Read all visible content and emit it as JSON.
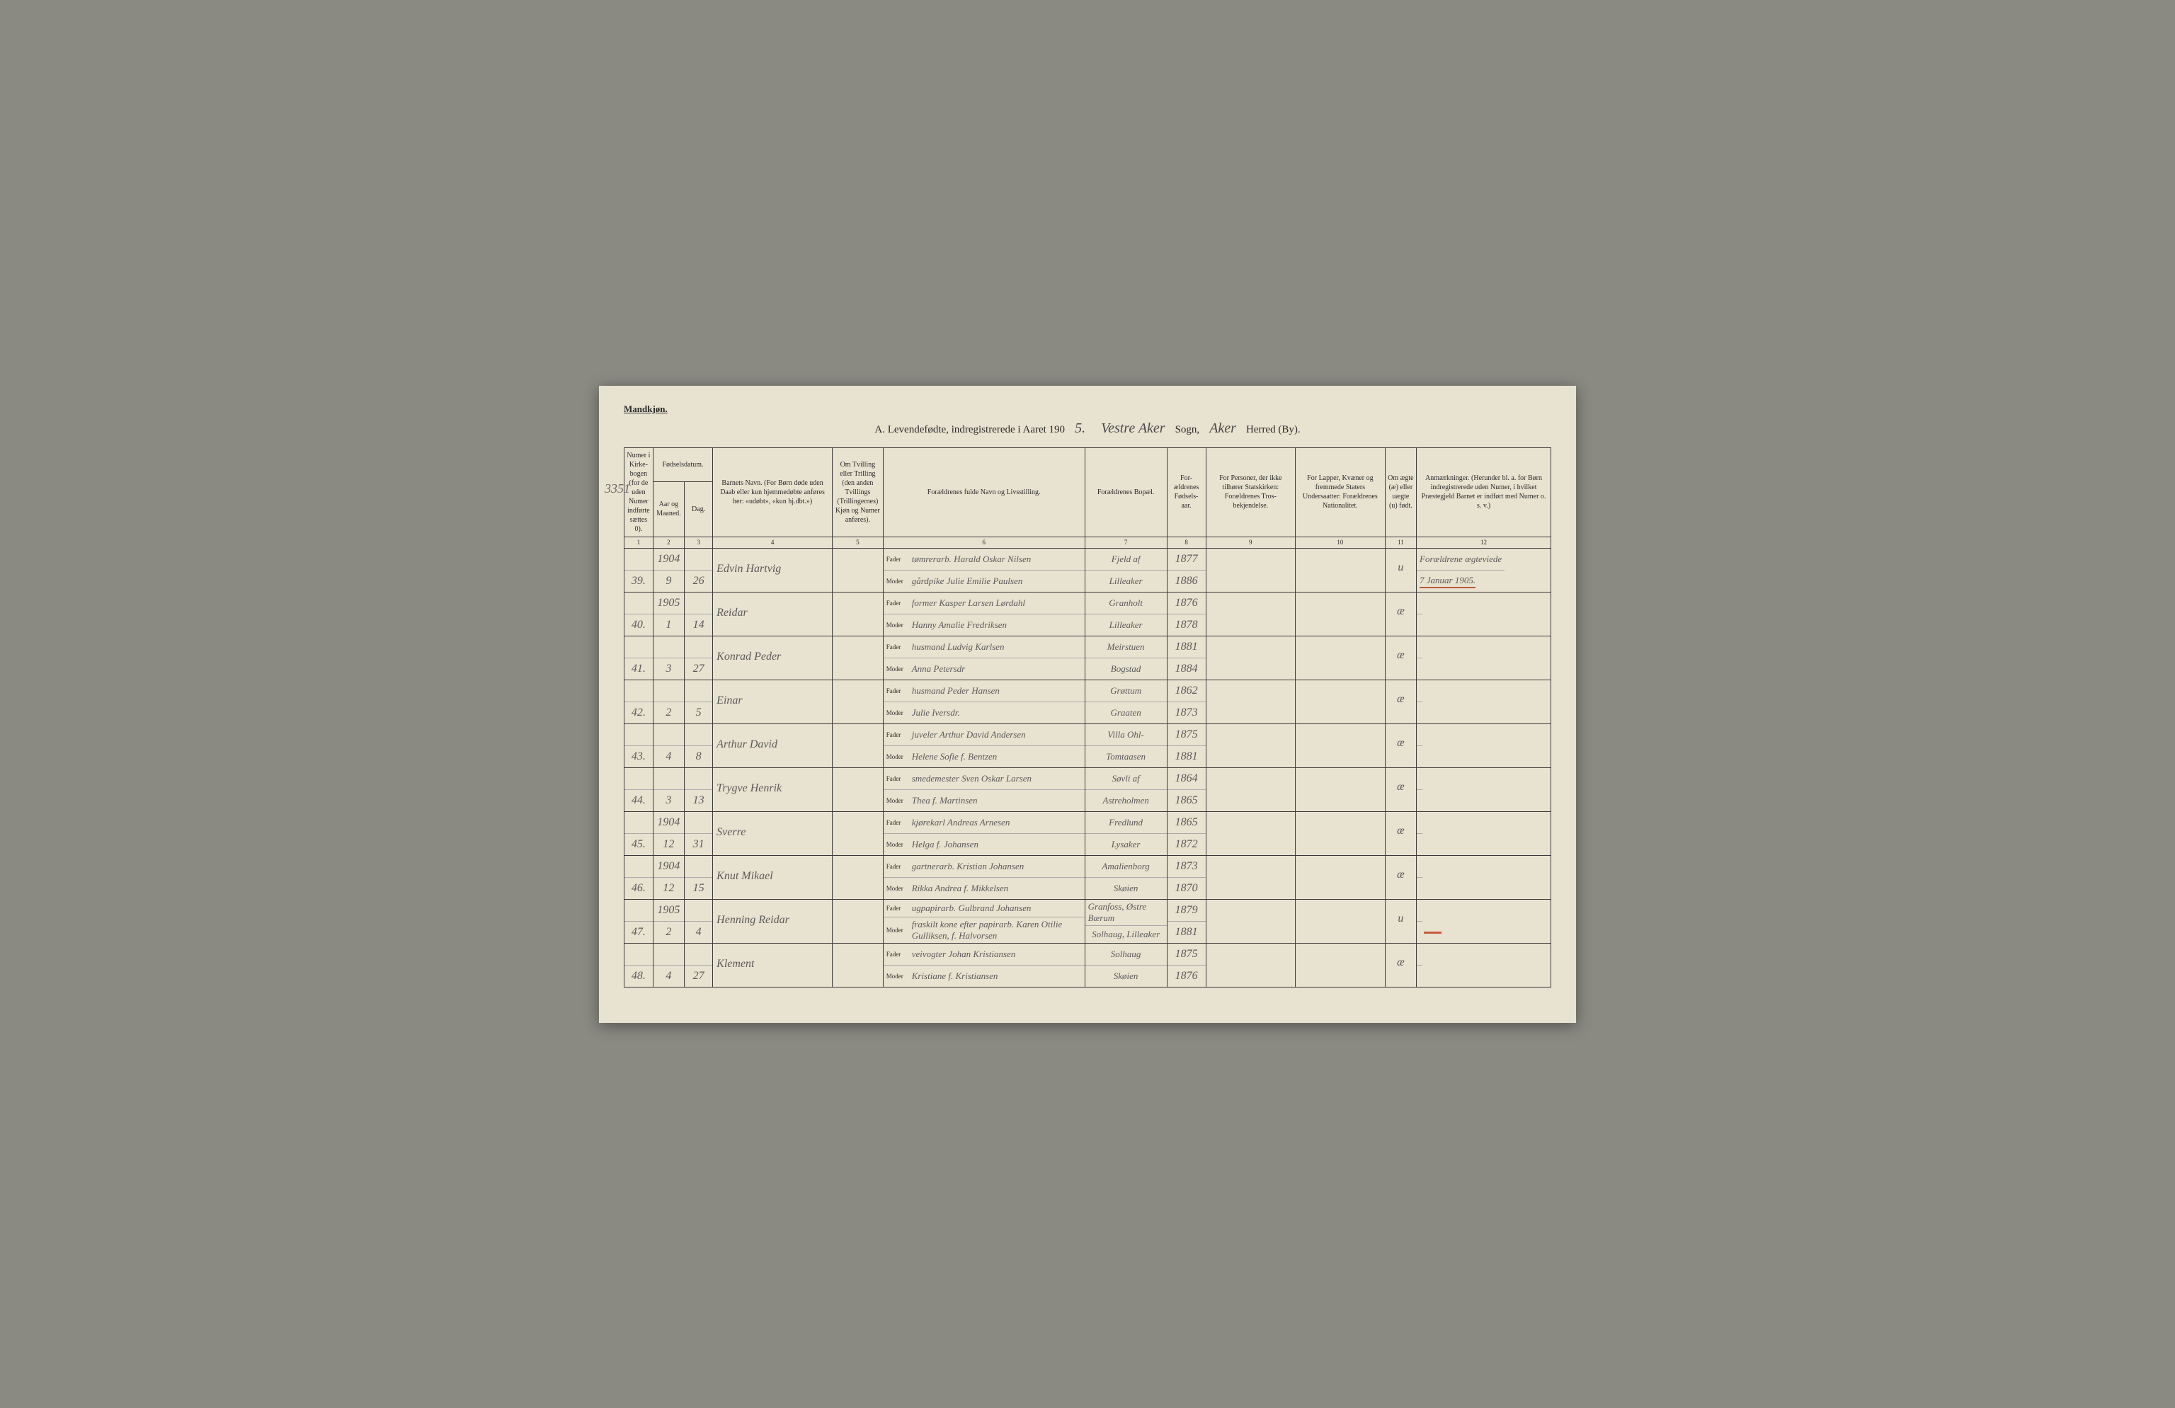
{
  "page": {
    "gender_label": "Mandkjøn.",
    "background_color": "#e8e2d0",
    "border_color": "#3a3a3a",
    "text_color": "#2a2a2a",
    "hand_color": "#5a5a5a"
  },
  "title": {
    "prefix": "A.  Levendefødte, indregistrerede i Aaret 190",
    "year_hand": "5.",
    "sogn_hand": "Vestre Aker",
    "sogn_label": "Sogn,",
    "herred_hand": "Aker",
    "herred_label": "Herred (By)."
  },
  "margin_number": "3351",
  "headers": {
    "c1": "Numer i Kirke-bogen (for de uden Numer indførte sættes 0).",
    "c2_group": "Fødselsdatum.",
    "c2a": "Aar og Maaned.",
    "c2b": "Dag.",
    "c4": "Barnets Navn.\n(For Børn døde uden Daab eller kun hjemmedøbte anføres her: «udøbt», «kun hj.dbt.»)",
    "c5": "Om Tvilling eller Trilling (den anden Tvillings (Trillingernes) Kjøn og Numer anføres).",
    "c6": "Forældrenes fulde Navn og Livsstilling.",
    "c7": "Forældrenes Bopæl.",
    "c8": "For-ældrenes Fødsels-aar.",
    "c9": "For Personer, der ikke tilhører Statskirken: Forældrenes Tros-bekjendelse.",
    "c10": "For Lapper, Kvæner og fremmede Staters Undersaatter: Forældrenes Nationalitet.",
    "c11": "Om ægte (æ) eller uægte (u) født.",
    "c12": "Anmærkninger.\n(Herunder bl. a. for Børn indregistrerede uden Numer, i hvilket Præstegjeld Barnet er indført med Numer o. s. v.)",
    "fader": "Fader",
    "moder": "Moder"
  },
  "colnums": [
    "1",
    "2",
    "3",
    "4",
    "5",
    "6",
    "7",
    "8",
    "9",
    "10",
    "11",
    "12"
  ],
  "records": [
    {
      "num": "39.",
      "yr1": "1904",
      "mo": "9",
      "day": "26",
      "name": "Edvin Hartvig",
      "fader": "tømrerarb. Harald Oskar Nilsen",
      "moder": "gårdpike Julie Emilie Paulsen",
      "res1": "Fjeld af",
      "res2": "Lilleaker",
      "byr1": "1877",
      "byr2": "1886",
      "leg": "u",
      "rem1": "Forældrene ægteviede",
      "rem2": "7 Januar 1905.",
      "rem_underline": true
    },
    {
      "num": "40.",
      "yr1": "1905",
      "mo": "1",
      "day": "14",
      "name": "Reidar",
      "fader": "former Kasper Larsen Lørdahl",
      "moder": "Hanny Amalie Fredriksen",
      "res1": "Granholt",
      "res2": "Lilleaker",
      "byr1": "1876",
      "byr2": "1878",
      "leg": "æ",
      "rem1": "",
      "rem2": ""
    },
    {
      "num": "41.",
      "yr1": "",
      "mo": "3",
      "day": "27",
      "name": "Konrad Peder",
      "fader": "husmand Ludvig Karlsen",
      "moder": "Anna Petersdr",
      "res1": "Meirstuen",
      "res2": "Bogstad",
      "byr1": "1881",
      "byr2": "1884",
      "leg": "æ",
      "rem1": "",
      "rem2": ""
    },
    {
      "num": "42.",
      "yr1": "",
      "mo": "2",
      "day": "5",
      "name": "Einar",
      "fader": "husmand Peder Hansen",
      "moder": "Julie Iversdr.",
      "res1": "Grøttum",
      "res2": "Graaten",
      "byr1": "1862",
      "byr2": "1873",
      "leg": "æ",
      "rem1": "",
      "rem2": ""
    },
    {
      "num": "43.",
      "yr1": "",
      "mo": "4",
      "day": "8",
      "name": "Arthur David",
      "fader": "juveler Arthur David Andersen",
      "moder": "Helene Sofie f. Bentzen",
      "res1": "Villa Ohl-",
      "res2": "Tomtaasen",
      "byr1": "1875",
      "byr2": "1881",
      "leg": "æ",
      "rem1": "",
      "rem2": ""
    },
    {
      "num": "44.",
      "yr1": "",
      "mo": "3",
      "day": "13",
      "name": "Trygve Henrik",
      "fader": "smedemester Sven Oskar Larsen",
      "moder": "Thea f. Martinsen",
      "res1": "Søvli af",
      "res2": "Astreholmen",
      "byr1": "1864",
      "byr2": "1865",
      "leg": "æ",
      "rem1": "",
      "rem2": ""
    },
    {
      "num": "45.",
      "yr1": "1904",
      "mo": "12",
      "day": "31",
      "name": "Sverre",
      "fader": "kjørekarl Andreas Arnesen",
      "moder": "Helga f. Johansen",
      "res1": "Fredlund",
      "res2": "Lysaker",
      "byr1": "1865",
      "byr2": "1872",
      "leg": "æ",
      "rem1": "",
      "rem2": ""
    },
    {
      "num": "46.",
      "yr1": "1904",
      "mo": "12",
      "day": "15",
      "name": "Knut Mikael",
      "fader": "gartnerarb. Kristian Johansen",
      "moder": "Rikka Andrea f. Mikkelsen",
      "res1": "Amalienborg",
      "res2": "Skøien",
      "byr1": "1873",
      "byr2": "1870",
      "leg": "æ",
      "rem1": "",
      "rem2": ""
    },
    {
      "num": "47.",
      "yr1": "1905",
      "mo": "2",
      "day": "4",
      "name": "Henning Reidar",
      "fader": "ugpapirarb. Gulbrand Johansen",
      "moder": "fraskilt kone efter papirarb. Karen Otilie Gulliksen, f. Halvorsen",
      "res1": "Granfoss, Østre Bærum",
      "res2": "Solhaug, Lilleaker",
      "byr1": "1879",
      "byr2": "1881",
      "leg": "u",
      "rem1": "",
      "rem2": "",
      "red_mark": true
    },
    {
      "num": "48.",
      "yr1": "",
      "mo": "4",
      "day": "27",
      "name": "Klement",
      "fader": "veivogter Johan Kristiansen",
      "moder": "Kristiane f. Kristiansen",
      "res1": "Solhaug",
      "res2": "Skøien",
      "byr1": "1875",
      "byr2": "1876",
      "leg": "æ",
      "rem1": "",
      "rem2": ""
    }
  ]
}
